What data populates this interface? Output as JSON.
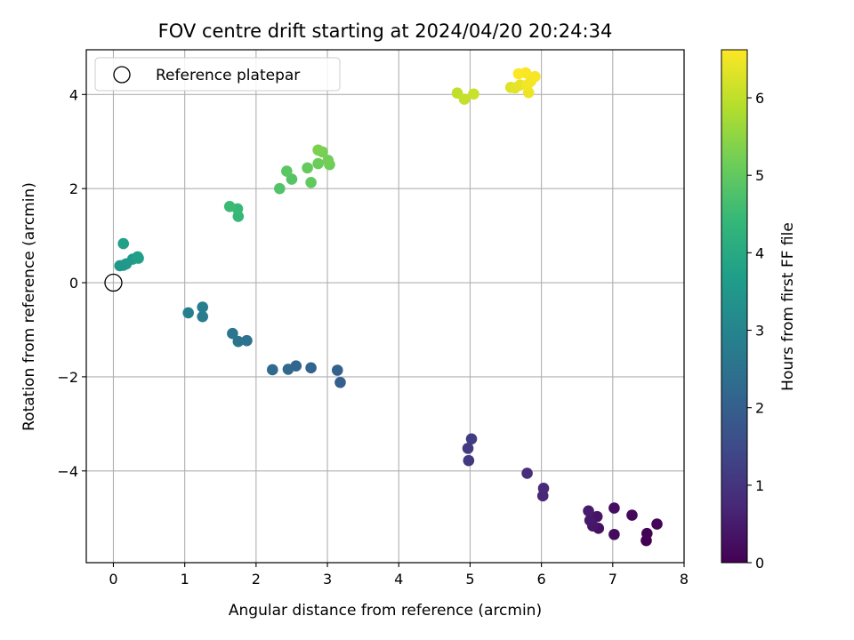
{
  "chart_data": {
    "type": "scatter",
    "title": "FOV centre drift starting at 2024/04/20 20:24:34",
    "xlabel": "Angular distance from reference (arcmin)",
    "ylabel": "Rotation from reference (arcmin)",
    "xlim": [
      -0.38,
      8.0
    ],
    "ylim": [
      -5.95,
      4.95
    ],
    "xticks": [
      0,
      1,
      2,
      3,
      4,
      5,
      6,
      7,
      8
    ],
    "yticks": [
      -4,
      -2,
      0,
      2,
      4
    ],
    "grid": true,
    "legend": {
      "placement": "top-left",
      "entries": [
        "Reference platepar"
      ]
    },
    "reference_point": {
      "x": 0,
      "y": 0,
      "label": "Reference platepar"
    },
    "colorbar": {
      "label": "Hours from first FF file",
      "range": [
        0,
        6.62
      ],
      "ticks": [
        0,
        1,
        2,
        3,
        4,
        5,
        6
      ],
      "colormap": "viridis"
    },
    "points": [
      {
        "x": 7.47,
        "y": -5.48,
        "h": 0.0
      },
      {
        "x": 7.48,
        "y": -5.33,
        "h": 0.05
      },
      {
        "x": 7.62,
        "y": -5.13,
        "h": 0.1
      },
      {
        "x": 7.27,
        "y": -4.94,
        "h": 0.15
      },
      {
        "x": 7.02,
        "y": -5.35,
        "h": 0.2
      },
      {
        "x": 7.02,
        "y": -4.79,
        "h": 0.25
      },
      {
        "x": 6.8,
        "y": -5.22,
        "h": 0.3
      },
      {
        "x": 6.78,
        "y": -4.97,
        "h": 0.35
      },
      {
        "x": 6.72,
        "y": -5.17,
        "h": 0.4
      },
      {
        "x": 6.68,
        "y": -5.05,
        "h": 0.45
      },
      {
        "x": 6.66,
        "y": -4.85,
        "h": 0.5
      },
      {
        "x": 6.02,
        "y": -4.53,
        "h": 0.75
      },
      {
        "x": 6.03,
        "y": -4.37,
        "h": 0.8
      },
      {
        "x": 5.8,
        "y": -4.05,
        "h": 0.9
      },
      {
        "x": 4.98,
        "y": -3.78,
        "h": 1.1
      },
      {
        "x": 4.97,
        "y": -3.52,
        "h": 1.15
      },
      {
        "x": 5.02,
        "y": -3.32,
        "h": 1.2
      },
      {
        "x": 3.18,
        "y": -2.12,
        "h": 2.0
      },
      {
        "x": 3.14,
        "y": -1.86,
        "h": 2.05
      },
      {
        "x": 2.77,
        "y": -1.81,
        "h": 2.1
      },
      {
        "x": 2.56,
        "y": -1.77,
        "h": 2.15
      },
      {
        "x": 2.45,
        "y": -1.84,
        "h": 2.2
      },
      {
        "x": 2.23,
        "y": -1.85,
        "h": 2.25
      },
      {
        "x": 1.87,
        "y": -1.23,
        "h": 2.5
      },
      {
        "x": 1.75,
        "y": -1.25,
        "h": 2.55
      },
      {
        "x": 1.67,
        "y": -1.08,
        "h": 2.6
      },
      {
        "x": 1.25,
        "y": -0.72,
        "h": 2.75
      },
      {
        "x": 1.25,
        "y": -0.52,
        "h": 2.8
      },
      {
        "x": 1.05,
        "y": -0.64,
        "h": 2.85
      },
      {
        "x": 0.14,
        "y": 0.37,
        "h": 3.45
      },
      {
        "x": 0.09,
        "y": 0.36,
        "h": 3.5
      },
      {
        "x": 0.18,
        "y": 0.4,
        "h": 3.55
      },
      {
        "x": 0.27,
        "y": 0.5,
        "h": 3.6
      },
      {
        "x": 0.34,
        "y": 0.55,
        "h": 3.65
      },
      {
        "x": 0.35,
        "y": 0.52,
        "h": 3.7
      },
      {
        "x": 0.14,
        "y": 0.83,
        "h": 3.75
      },
      {
        "x": 1.75,
        "y": 1.41,
        "h": 4.4
      },
      {
        "x": 1.74,
        "y": 1.57,
        "h": 4.45
      },
      {
        "x": 1.63,
        "y": 1.62,
        "h": 4.5
      },
      {
        "x": 2.33,
        "y": 2.0,
        "h": 4.8
      },
      {
        "x": 2.5,
        "y": 2.2,
        "h": 4.85
      },
      {
        "x": 2.43,
        "y": 2.37,
        "h": 4.9
      },
      {
        "x": 2.77,
        "y": 2.13,
        "h": 5.0
      },
      {
        "x": 2.72,
        "y": 2.44,
        "h": 5.05
      },
      {
        "x": 2.87,
        "y": 2.53,
        "h": 5.1
      },
      {
        "x": 3.03,
        "y": 2.51,
        "h": 5.15
      },
      {
        "x": 3.01,
        "y": 2.6,
        "h": 5.2
      },
      {
        "x": 2.93,
        "y": 2.78,
        "h": 5.25
      },
      {
        "x": 2.87,
        "y": 2.82,
        "h": 5.3
      },
      {
        "x": 4.82,
        "y": 4.03,
        "h": 6.0
      },
      {
        "x": 4.92,
        "y": 3.9,
        "h": 6.05
      },
      {
        "x": 5.05,
        "y": 4.01,
        "h": 6.1
      },
      {
        "x": 5.57,
        "y": 4.15,
        "h": 6.3
      },
      {
        "x": 5.63,
        "y": 4.14,
        "h": 6.35
      },
      {
        "x": 5.7,
        "y": 4.2,
        "h": 6.4
      },
      {
        "x": 5.82,
        "y": 4.04,
        "h": 6.45
      },
      {
        "x": 5.85,
        "y": 4.28,
        "h": 6.5
      },
      {
        "x": 5.8,
        "y": 4.2,
        "h": 6.52
      },
      {
        "x": 5.91,
        "y": 4.38,
        "h": 6.55
      },
      {
        "x": 5.78,
        "y": 4.46,
        "h": 6.58
      },
      {
        "x": 5.68,
        "y": 4.44,
        "h": 6.62
      }
    ]
  }
}
